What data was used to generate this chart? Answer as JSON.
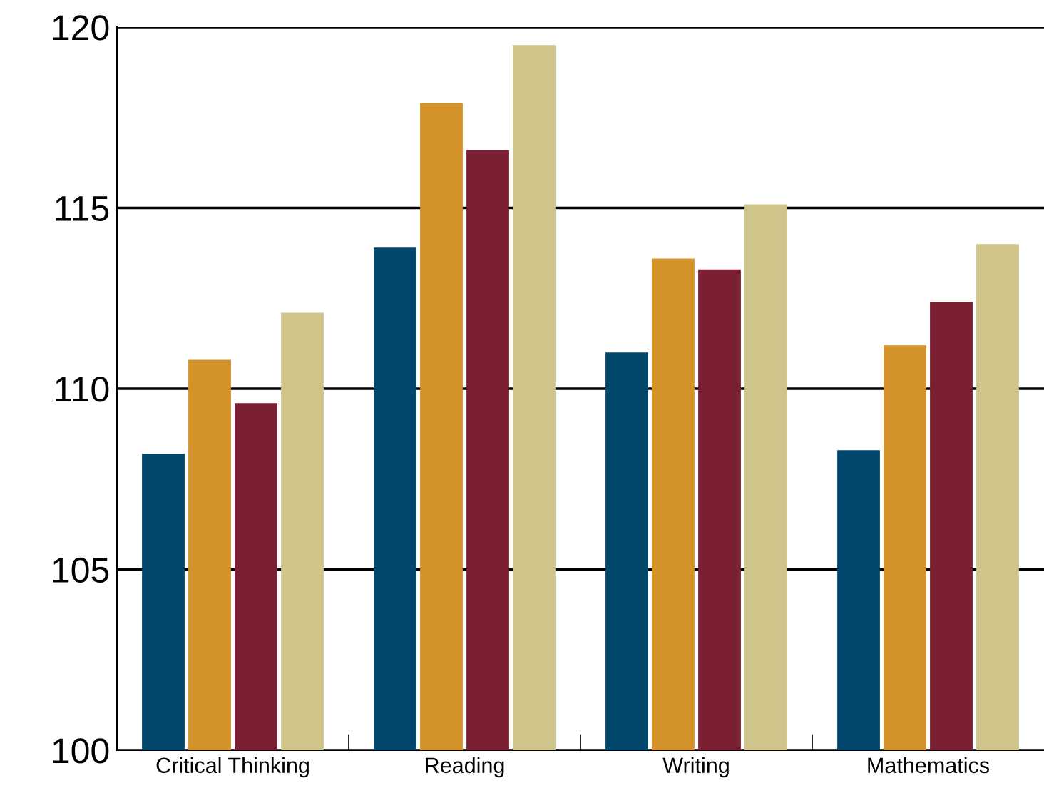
{
  "chart_data": {
    "type": "bar",
    "categories": [
      "Critical Thinking",
      "Reading",
      "Writing",
      "Mathematics"
    ],
    "series": [
      {
        "color": "#00476b",
        "values": [
          108.2,
          113.9,
          111.0,
          108.3
        ]
      },
      {
        "color": "#d4922a",
        "values": [
          110.8,
          117.9,
          113.6,
          111.2
        ]
      },
      {
        "color": "#7b2032",
        "values": [
          109.6,
          116.6,
          113.3,
          112.4
        ]
      },
      {
        "color": "#cfc58a",
        "values": [
          112.1,
          119.5,
          115.1,
          114.0
        ]
      }
    ],
    "ylim": [
      100,
      120
    ],
    "yticks": [
      100,
      105,
      110,
      115,
      120
    ],
    "grid": "y",
    "legend": false
  }
}
